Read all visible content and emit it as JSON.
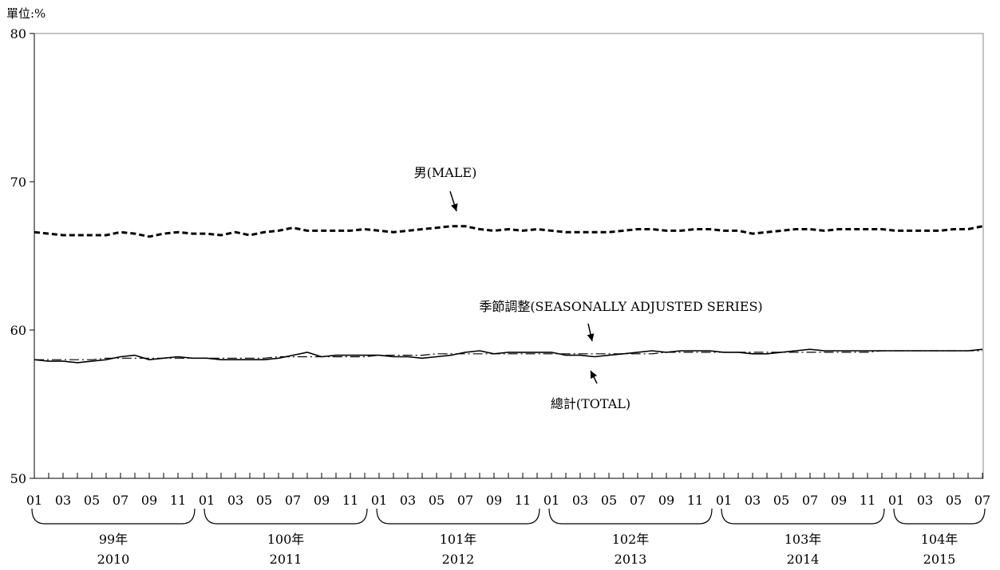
{
  "chart_data": {
    "type": "line",
    "unit_label": "單位:%",
    "ylim": [
      50,
      80
    ],
    "y_ticks": [
      50,
      60,
      70,
      80
    ],
    "grid": false,
    "x_start": "2010-01",
    "month_tick_labels": [
      "01",
      "03",
      "05",
      "07",
      "09",
      "11",
      "01",
      "03",
      "05",
      "07",
      "09",
      "11",
      "01",
      "03",
      "05",
      "07",
      "09",
      "11",
      "01",
      "03",
      "05",
      "07",
      "09",
      "11",
      "01",
      "03",
      "05",
      "07",
      "09",
      "11",
      "01",
      "03",
      "05",
      "07"
    ],
    "year_groups": [
      {
        "roc": "99年",
        "ad": "2010"
      },
      {
        "roc": "100年",
        "ad": "2011"
      },
      {
        "roc": "101年",
        "ad": "2012"
      },
      {
        "roc": "102年",
        "ad": "2013"
      },
      {
        "roc": "103年",
        "ad": "2014"
      },
      {
        "roc": "104年",
        "ad": "2015"
      }
    ],
    "series": [
      {
        "name": "男(MALE)",
        "style": "dashed-bold",
        "values": [
          66.6,
          66.5,
          66.4,
          66.4,
          66.4,
          66.4,
          66.6,
          66.5,
          66.3,
          66.5,
          66.6,
          66.5,
          66.5,
          66.4,
          66.6,
          66.4,
          66.6,
          66.7,
          66.9,
          66.7,
          66.7,
          66.7,
          66.7,
          66.8,
          66.7,
          66.6,
          66.7,
          66.8,
          66.9,
          67.0,
          67.0,
          66.8,
          66.7,
          66.8,
          66.7,
          66.8,
          66.7,
          66.6,
          66.6,
          66.6,
          66.6,
          66.7,
          66.8,
          66.8,
          66.7,
          66.7,
          66.8,
          66.8,
          66.7,
          66.7,
          66.5,
          66.6,
          66.7,
          66.8,
          66.8,
          66.7,
          66.8,
          66.8,
          66.8,
          66.8,
          66.7,
          66.7,
          66.7,
          66.7,
          66.8,
          66.8,
          67.0
        ]
      },
      {
        "name": "總計(TOTAL)",
        "style": "solid",
        "values": [
          58.0,
          57.9,
          57.9,
          57.8,
          57.9,
          58.0,
          58.2,
          58.3,
          58.0,
          58.1,
          58.2,
          58.1,
          58.1,
          58.0,
          58.0,
          58.0,
          58.0,
          58.1,
          58.3,
          58.5,
          58.2,
          58.3,
          58.3,
          58.3,
          58.3,
          58.2,
          58.2,
          58.1,
          58.2,
          58.3,
          58.5,
          58.6,
          58.4,
          58.5,
          58.5,
          58.5,
          58.5,
          58.3,
          58.3,
          58.2,
          58.3,
          58.4,
          58.5,
          58.6,
          58.5,
          58.6,
          58.6,
          58.6,
          58.5,
          58.5,
          58.4,
          58.4,
          58.5,
          58.6,
          58.7,
          58.6,
          58.6,
          58.6,
          58.6,
          58.6,
          58.6,
          58.6,
          58.6,
          58.6,
          58.6,
          58.6,
          58.7
        ]
      },
      {
        "name": "季節調整(SEASONALLY  ADJUSTED SERIES)",
        "style": "dash-dot",
        "values": [
          58.0,
          58.0,
          58.0,
          58.0,
          58.0,
          58.1,
          58.1,
          58.1,
          58.1,
          58.1,
          58.1,
          58.1,
          58.1,
          58.1,
          58.1,
          58.1,
          58.1,
          58.2,
          58.2,
          58.2,
          58.2,
          58.2,
          58.2,
          58.2,
          58.3,
          58.3,
          58.3,
          58.3,
          58.4,
          58.4,
          58.4,
          58.4,
          58.4,
          58.4,
          58.4,
          58.4,
          58.4,
          58.4,
          58.4,
          58.4,
          58.4,
          58.4,
          58.4,
          58.4,
          58.5,
          58.5,
          58.5,
          58.5,
          58.5,
          58.5,
          58.5,
          58.5,
          58.5,
          58.5,
          58.5,
          58.5,
          58.5,
          58.5,
          58.5,
          58.6,
          58.6,
          58.6,
          58.6,
          58.6,
          58.6,
          58.6,
          58.6
        ]
      }
    ]
  }
}
